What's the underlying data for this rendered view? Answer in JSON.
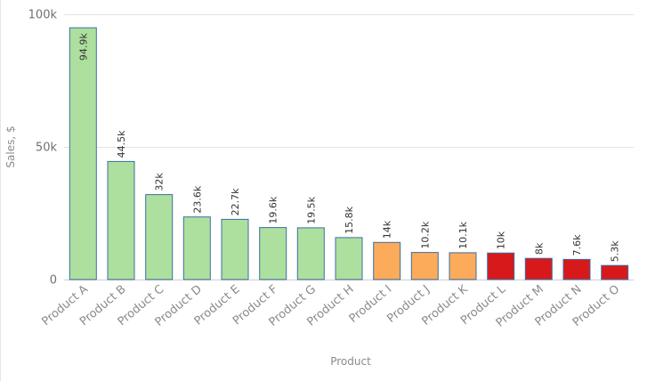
{
  "chart_data": {
    "type": "bar",
    "title": "",
    "xlabel": "Product",
    "ylabel": "Sales, $",
    "ylim": [
      0,
      100000
    ],
    "yticks": [
      {
        "value": 0,
        "label": "0"
      },
      {
        "value": 50000,
        "label": "50k"
      },
      {
        "value": 100000,
        "label": "100k"
      }
    ],
    "grid": true,
    "legend": "none",
    "categories": [
      "Product A",
      "Product B",
      "Product C",
      "Product D",
      "Product E",
      "Product F",
      "Product G",
      "Product H",
      "Product I",
      "Product J",
      "Product K",
      "Product L",
      "Product M",
      "Product N",
      "Product O"
    ],
    "values": [
      94900,
      44500,
      32000,
      23600,
      22700,
      19600,
      19500,
      15800,
      14000,
      10200,
      10100,
      10000,
      8000,
      7600,
      5300
    ],
    "data_labels": [
      "94.9k",
      "44.5k",
      "32k",
      "23.6k",
      "22.7k",
      "19.6k",
      "19.5k",
      "15.8k",
      "14k",
      "10.2k",
      "10.1k",
      "10k",
      "8k",
      "7.6k",
      "5.3k"
    ],
    "bar_colors": [
      "#addf9e",
      "#addf9e",
      "#addf9e",
      "#addf9e",
      "#addf9e",
      "#addf9e",
      "#addf9e",
      "#addf9e",
      "#fbab5a",
      "#fbab5a",
      "#fbab5a",
      "#d7191c",
      "#d7191c",
      "#d7191c",
      "#d7191c"
    ],
    "bar_outline_color": "#3b6fa3"
  }
}
